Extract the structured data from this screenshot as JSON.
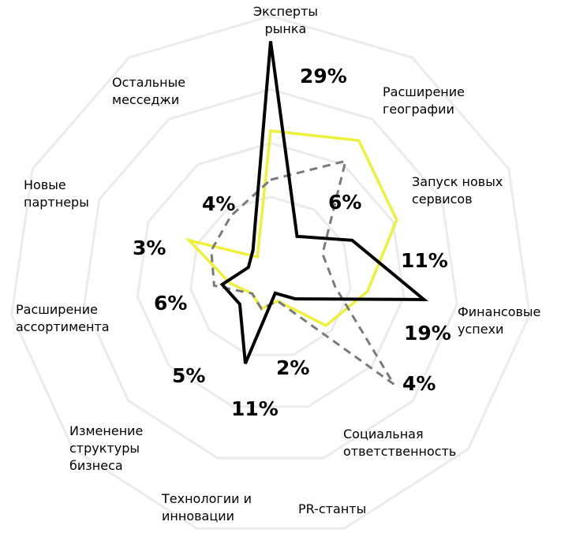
{
  "chart_data": {
    "type": "radar",
    "categories": [
      "Эксперты рынка",
      "Расширение географии",
      "Запуск новых сервисов",
      "Финансовые успехи",
      "Социальная ответственность",
      "PR-станты",
      "Технологии и инновации",
      "Изменение структуры бизнеса",
      "Расширение ассортимента",
      "Новые партнеры",
      "Остальные месседжи"
    ],
    "rlim": [
      0,
      30
    ],
    "series": [
      {
        "color": "#eef03a",
        "style": "solid",
        "values": [
          18,
          20,
          17,
          12,
          9,
          3,
          4,
          3,
          5,
          11,
          3
        ]
      },
      {
        "color": "#7a7a7a",
        "style": "dashed",
        "values": [
          12,
          17,
          7,
          8,
          20,
          3,
          4,
          3,
          7,
          8,
          9
        ]
      },
      {
        "color": "#000000",
        "style": "solid",
        "values": [
          29,
          6,
          11,
          19,
          4,
          2,
          11,
          5,
          6,
          3,
          4
        ],
        "value_labels": [
          "29%",
          "6%",
          "11%",
          "19%",
          "4%",
          "2%",
          "11%",
          "5%",
          "6%",
          "3%",
          "4%"
        ]
      }
    ]
  }
}
